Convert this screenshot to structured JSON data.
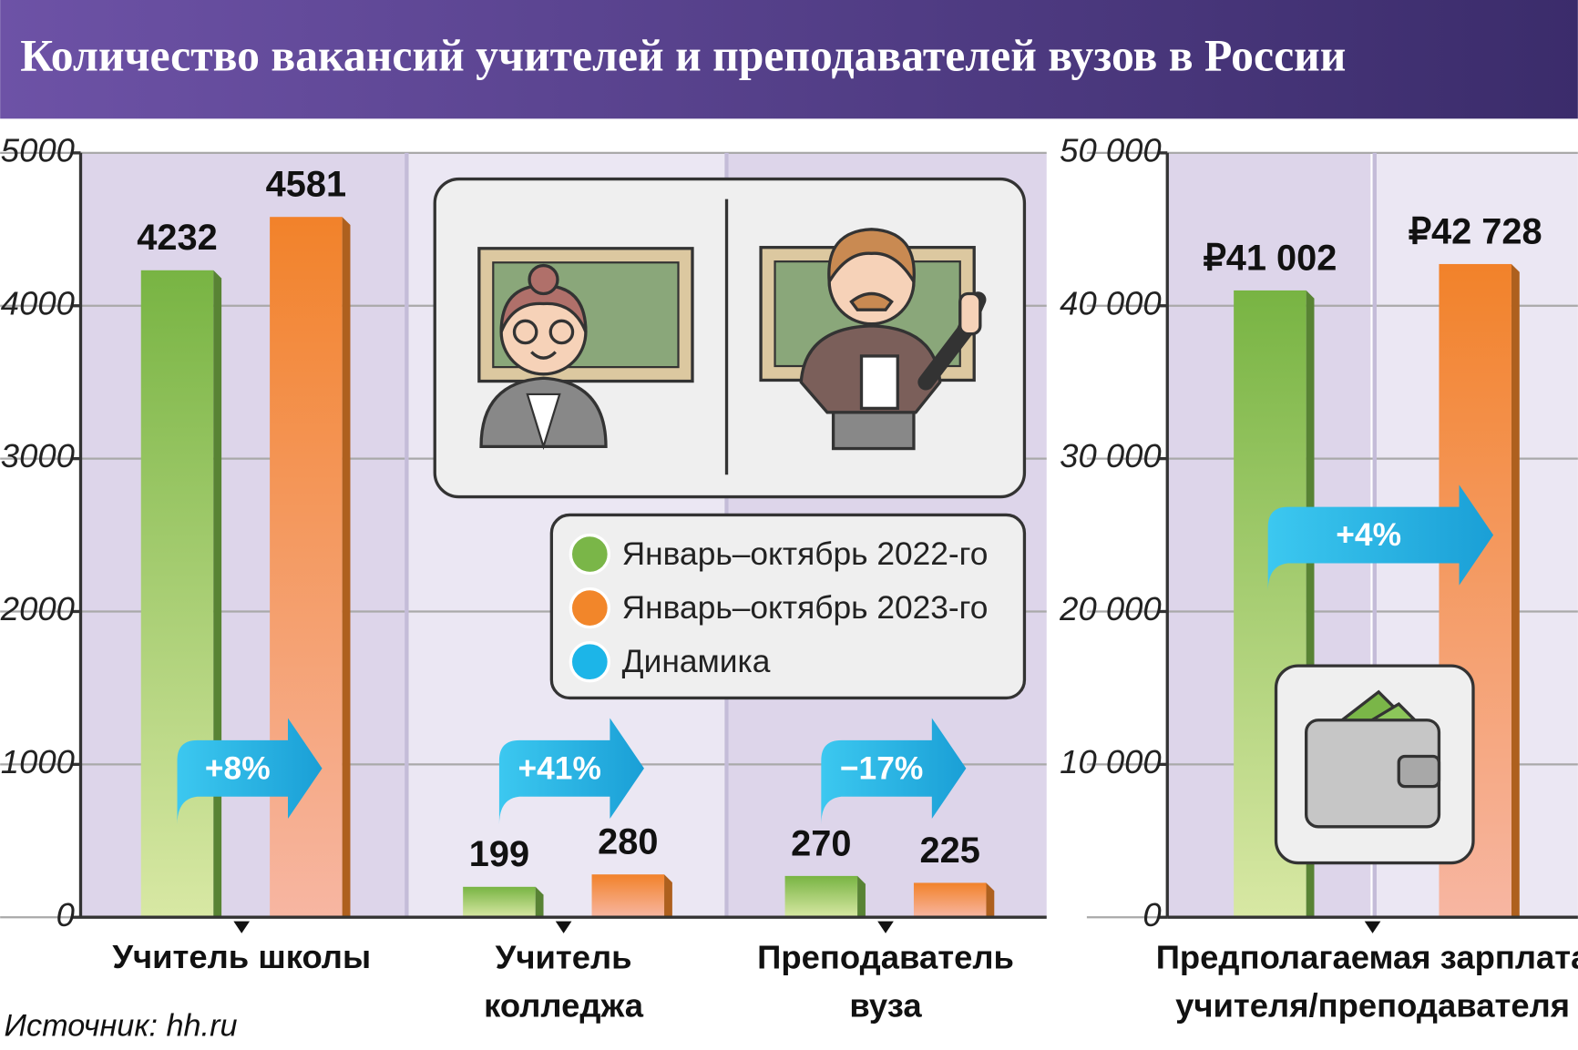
{
  "chart_data": [
    {
      "type": "bar",
      "title": "Количество вакансий учителей и преподавателей вузов в России",
      "source": "Источник: hh.ru",
      "categories": [
        "Учитель школы",
        "Учитель\nколледжа",
        "Преподаватель\nвуза"
      ],
      "series": [
        {
          "name": "Январь–октябрь 2022-го",
          "color": "#7ab648",
          "values": [
            4232,
            199,
            270
          ]
        },
        {
          "name": "Январь–октябрь 2023-го",
          "color": "#f2862a",
          "values": [
            4581,
            280,
            225
          ]
        }
      ],
      "change": {
        "name": "Динамика",
        "color": "#1cb5e8",
        "values": [
          8,
          41,
          -17
        ],
        "value_labels": [
          "+8%",
          "+41%",
          "−17%"
        ]
      },
      "ylim": [
        0,
        5000
      ],
      "yticks": [
        0,
        1000,
        2000,
        3000,
        4000,
        5000
      ],
      "grid": true
    },
    {
      "type": "bar",
      "categories": [
        "Предполагаемая зарплата\nучителя/преподавателя"
      ],
      "series": [
        {
          "color": "#7ab648",
          "values": [
            41002
          ],
          "value_labels": [
            "₽41 002"
          ]
        },
        {
          "color": "#f2862a",
          "values": [
            42728
          ],
          "value_labels": [
            "₽42 728"
          ]
        }
      ],
      "change": {
        "color": "#1cb5e8",
        "values": [
          4
        ],
        "value_labels": [
          "+4%"
        ]
      },
      "ylim": [
        0,
        50000
      ],
      "yticks": [
        0,
        {
          "value": 10000,
          "label": "10 000"
        },
        {
          "value": 20000,
          "label": "20 000"
        },
        {
          "value": 30000,
          "label": "30 000"
        },
        {
          "value": 40000,
          "label": "40 000"
        },
        {
          "value": 50000,
          "label": "50 000"
        }
      ],
      "grid": true
    }
  ]
}
